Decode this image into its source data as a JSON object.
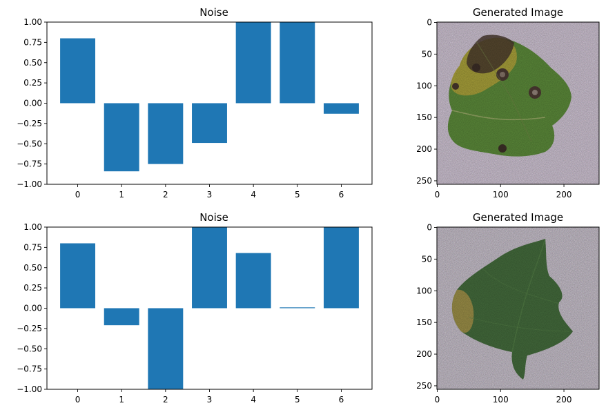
{
  "chart_data": [
    {
      "type": "bar",
      "title": "Noise",
      "categories": [
        "0",
        "1",
        "2",
        "3",
        "4",
        "5",
        "6"
      ],
      "values": [
        0.8,
        -0.84,
        -0.75,
        -0.49,
        1.0,
        1.0,
        -0.13
      ],
      "ylim": [
        -1.0,
        1.0
      ],
      "xlim": [
        -0.7,
        6.7
      ],
      "yticks": [
        "1.00",
        "0.75",
        "0.50",
        "0.25",
        "0.00",
        "−0.25",
        "−0.50",
        "−0.75",
        "−1.00"
      ],
      "bar_color": "#1f77b4",
      "grid": false
    },
    {
      "type": "image",
      "title": "Generated Image",
      "xticks": [
        "0",
        "100",
        "200"
      ],
      "yticks": [
        "0",
        "50",
        "100",
        "150",
        "200",
        "250"
      ],
      "extent": [
        0,
        256
      ],
      "content": "diseased leaf on noisy background"
    },
    {
      "type": "bar",
      "title": "Noise",
      "categories": [
        "0",
        "1",
        "2",
        "3",
        "4",
        "5",
        "6"
      ],
      "values": [
        0.8,
        -0.21,
        -1.0,
        1.0,
        0.68,
        0.01,
        1.0
      ],
      "ylim": [
        -1.0,
        1.0
      ],
      "xlim": [
        -0.7,
        6.7
      ],
      "yticks": [
        "1.00",
        "0.75",
        "0.50",
        "0.25",
        "0.00",
        "−0.25",
        "−0.50",
        "−0.75",
        "−1.00"
      ],
      "bar_color": "#1f77b4",
      "grid": false
    },
    {
      "type": "image",
      "title": "Generated Image",
      "xticks": [
        "0",
        "100",
        "200"
      ],
      "yticks": [
        "0",
        "50",
        "100",
        "150",
        "200",
        "250"
      ],
      "extent": [
        0,
        256
      ],
      "content": "green leaf on noisy background"
    }
  ]
}
